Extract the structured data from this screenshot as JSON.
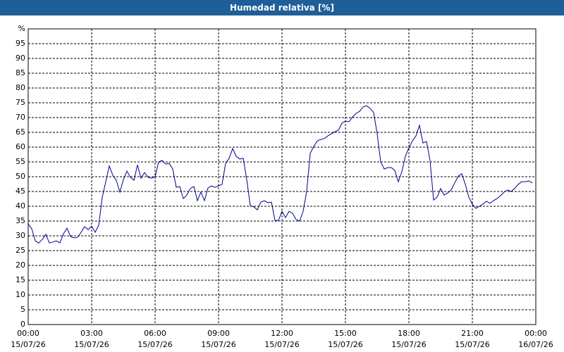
{
  "chart_data": {
    "type": "line",
    "title": "Humedad relativa [%]",
    "x": [
      0,
      10,
      20,
      30,
      40,
      50,
      60,
      70,
      80,
      90,
      100,
      110,
      120,
      130,
      140,
      150,
      160,
      170,
      180,
      190,
      200,
      210,
      220,
      230,
      240,
      250,
      260,
      270,
      280,
      290,
      300,
      310,
      320,
      330,
      340,
      350,
      360,
      370,
      380,
      390,
      400,
      410,
      420,
      430,
      440,
      450,
      460,
      470,
      480,
      490,
      500,
      510,
      520,
      530,
      540,
      550,
      560,
      570,
      580,
      590,
      600,
      610,
      620,
      630,
      640,
      650,
      660,
      670,
      680,
      690,
      700,
      710,
      720,
      730,
      740,
      750,
      760,
      770,
      780,
      790,
      800,
      810,
      820,
      830,
      840,
      850,
      860,
      870,
      880,
      890,
      900,
      910,
      920,
      930,
      940,
      950,
      960,
      970,
      980,
      990,
      1000,
      1010,
      1020,
      1030,
      1040,
      1050,
      1060,
      1070,
      1080,
      1090,
      1100,
      1110,
      1120,
      1130,
      1140,
      1150,
      1160,
      1170,
      1180,
      1190,
      1200,
      1210,
      1220,
      1230,
      1240,
      1250,
      1260,
      1270,
      1280,
      1290,
      1300,
      1310,
      1320,
      1330,
      1340,
      1350,
      1360,
      1370,
      1380,
      1390,
      1400,
      1410,
      1420,
      1430
    ],
    "series": [
      {
        "name": "Humedad relativa",
        "color": "#00008b",
        "values": [
          34,
          32.4,
          28.3,
          27.6,
          28.8,
          30.5,
          27.6,
          27.9,
          28.3,
          27.6,
          30.7,
          32.6,
          29.8,
          29.3,
          29.5,
          31.2,
          33.1,
          32.1,
          33.3,
          31.2,
          33.6,
          43,
          48.3,
          53.6,
          50.5,
          48.8,
          44.8,
          49,
          51.9,
          49.8,
          48.8,
          54,
          49.5,
          51.4,
          49.8,
          49.5,
          50,
          55,
          55.5,
          54.3,
          54.5,
          52.6,
          46.4,
          46.7,
          42.6,
          43.8,
          46,
          46.7,
          41.9,
          44.8,
          41.9,
          46.2,
          46.9,
          46.4,
          46.9,
          47.4,
          54.5,
          56.2,
          59.5,
          56.9,
          56,
          56.2,
          49,
          40.2,
          39.8,
          38.8,
          41.4,
          41.9,
          41.2,
          41.4,
          35.2,
          35.2,
          38.3,
          36.2,
          38.3,
          37.6,
          35.5,
          35,
          38.3,
          45,
          57.9,
          60.2,
          62.1,
          62.6,
          62.9,
          63.8,
          64.5,
          65.2,
          65.7,
          68.1,
          68.8,
          68.6,
          70.2,
          71.4,
          72.1,
          73.6,
          74,
          73.1,
          71.7,
          64.5,
          55,
          52.6,
          53.1,
          53.1,
          52.1,
          48.3,
          51.7,
          56.9,
          59.8,
          62.1,
          63.8,
          67.4,
          61.4,
          61.9,
          55.5,
          42.1,
          43.1,
          46,
          43.8,
          44.5,
          45.5,
          47.9,
          50.2,
          51,
          47.4,
          43.1,
          40.7,
          39.3,
          40,
          40.7,
          41.7,
          41,
          41.9,
          42.6,
          43.6,
          44.8,
          45.5,
          45,
          46,
          47.4,
          48.3,
          48.3,
          48.6,
          47.9
        ]
      }
    ],
    "xlim": [
      0,
      1440
    ],
    "xticks": [
      {
        "value": 0,
        "label": "00:00",
        "date": "15/07/26"
      },
      {
        "value": 180,
        "label": "03:00",
        "date": "15/07/26"
      },
      {
        "value": 360,
        "label": "06:00",
        "date": "15/07/26"
      },
      {
        "value": 540,
        "label": "09:00",
        "date": "15/07/26"
      },
      {
        "value": 720,
        "label": "12:00",
        "date": "15/07/26"
      },
      {
        "value": 900,
        "label": "15:00",
        "date": "15/07/26"
      },
      {
        "value": 1080,
        "label": "18:00",
        "date": "15/07/26"
      },
      {
        "value": 1260,
        "label": "21:00",
        "date": "15/07/26"
      },
      {
        "value": 1440,
        "label": "00:00",
        "date": "16/07/26"
      }
    ],
    "ylim": [
      0,
      100
    ],
    "yticks": [
      0,
      5,
      10,
      15,
      20,
      25,
      30,
      35,
      40,
      45,
      50,
      55,
      60,
      65,
      70,
      75,
      80,
      85,
      90,
      95,
      {
        "value": 100,
        "label": "%"
      }
    ],
    "grid": true
  }
}
